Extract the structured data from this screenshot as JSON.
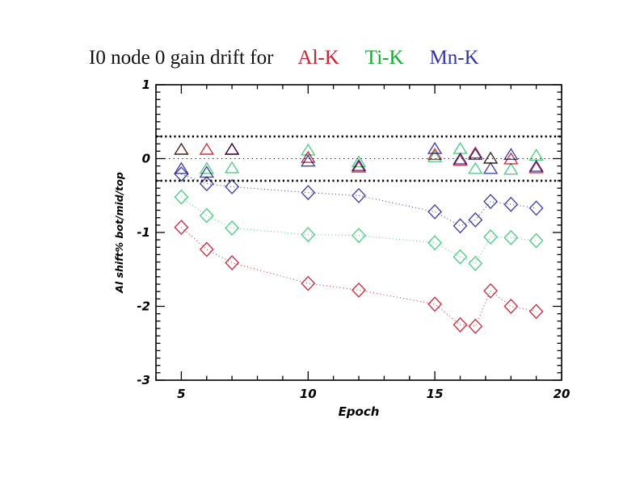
{
  "page": {
    "background": "#ffffff"
  },
  "title": {
    "prefix": "I0 node 0 gain drift for",
    "legend": [
      {
        "label": "Al-K",
        "color": "#cc2233"
      },
      {
        "label": "Ti-K",
        "color": "#11aa33"
      },
      {
        "label": "Mn-K",
        "color": "#3333aa"
      }
    ]
  },
  "chart_data": {
    "type": "scatter",
    "title": "I0 node 0 gain drift for Al-K Ti-K Mn-K",
    "xlabel": "Epoch",
    "ylabel": "Al shift% bot/mid/top",
    "xlim": [
      4,
      20
    ],
    "ylim": [
      -3,
      1
    ],
    "xticks": [
      5,
      10,
      15,
      20
    ],
    "yticks": [
      1,
      0,
      -1,
      -2,
      -3
    ],
    "x_minor_step": 1,
    "y_minor_step": 0.1,
    "grid": false,
    "legend_position": "in-title",
    "reference_lines": [
      {
        "y": 0.3,
        "style": "dotted-thick"
      },
      {
        "y": 0.0,
        "style": "dotted-thin"
      },
      {
        "y": -0.3,
        "style": "dotted-thick"
      }
    ],
    "x": [
      5,
      6,
      7,
      10,
      12,
      15,
      16,
      16.6,
      17.2,
      18,
      19
    ],
    "series": [
      {
        "name": "Mn-K diamond",
        "element": "Mn-K",
        "symbol": "diamond",
        "connected": true,
        "line_style": "dotted",
        "color": "#4444aa",
        "values": [
          -0.21,
          -0.34,
          -0.38,
          -0.46,
          -0.5,
          -0.72,
          -0.91,
          -0.83,
          -0.58,
          -0.62,
          -0.67
        ]
      },
      {
        "name": "Ti-K diamond",
        "element": "Ti-K",
        "symbol": "diamond",
        "connected": true,
        "line_style": "dotted",
        "color": "#55cc88",
        "values": [
          -0.52,
          -0.77,
          -0.94,
          -1.03,
          -1.04,
          -1.14,
          -1.33,
          -1.42,
          -1.06,
          -1.07,
          -1.11
        ]
      },
      {
        "name": "Al-K diamond",
        "element": "Al-K",
        "symbol": "diamond",
        "connected": true,
        "line_style": "dotted",
        "color": "#cc3344",
        "values": [
          -0.93,
          -1.23,
          -1.41,
          -1.69,
          -1.78,
          -1.97,
          -2.25,
          -2.27,
          -1.79,
          -2.0,
          -2.07
        ]
      },
      {
        "name": "Al-K triangle",
        "element": "Al-K",
        "symbol": "triangle",
        "connected": false,
        "line_style": "none",
        "color": "#cc3344",
        "values": [
          0.12,
          0.12,
          0.12,
          0.01,
          -0.12,
          0.05,
          -0.03,
          0.07,
          0.0,
          -0.01,
          -0.13
        ]
      },
      {
        "name": "Ti-K triangle",
        "element": "Ti-K",
        "symbol": "triangle",
        "connected": false,
        "line_style": "none",
        "color": "#55cc88",
        "values": [
          0.12,
          -0.14,
          -0.13,
          0.11,
          -0.05,
          0.02,
          0.13,
          -0.14,
          0.0,
          -0.15,
          0.04
        ]
      },
      {
        "name": "Mn-K triangle",
        "element": "Mn-K",
        "symbol": "triangle",
        "connected": false,
        "line_style": "none",
        "color": "#4444aa",
        "values": [
          -0.14,
          -0.19,
          0.12,
          -0.04,
          -0.1,
          0.13,
          -0.01,
          0.05,
          -0.14,
          0.05,
          -0.11
        ]
      }
    ]
  }
}
